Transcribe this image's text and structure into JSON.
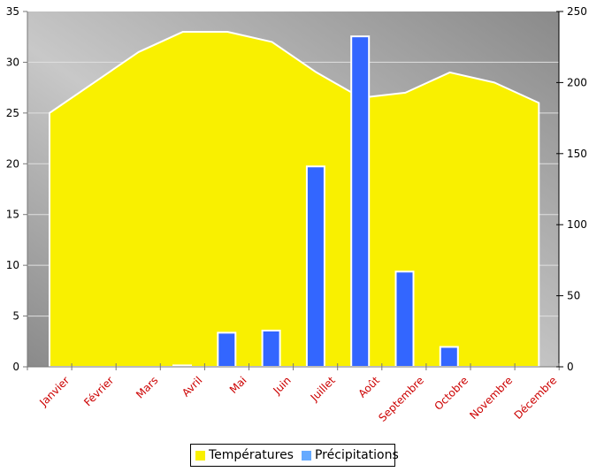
{
  "chart_data": {
    "type": "bar+area",
    "title": "",
    "categories": [
      "Janvier",
      "Février",
      "Mars",
      "Avril",
      "Mai",
      "Juin",
      "Juillet",
      "Août",
      "Septembre",
      "Octobre",
      "Novembre",
      "Décembre"
    ],
    "series": [
      {
        "name": "Températures",
        "type": "area",
        "axis": "left",
        "color": "#f9f000",
        "values": [
          25,
          28,
          31,
          33,
          33,
          32,
          29,
          26.5,
          27,
          29,
          28,
          26
        ]
      },
      {
        "name": "Précipitations",
        "type": "bar",
        "axis": "right",
        "color": "#3366ff",
        "values": [
          0,
          0,
          0,
          1,
          24,
          25.5,
          141,
          232.5,
          67,
          14,
          0,
          0
        ]
      }
    ],
    "left_axis": {
      "ylim": [
        0,
        35
      ],
      "ticks": [
        0,
        5,
        10,
        15,
        20,
        25,
        30,
        35
      ]
    },
    "right_axis": {
      "ylim": [
        0,
        250
      ],
      "ticks": [
        0,
        50,
        100,
        150,
        200,
        250
      ]
    },
    "xlabel": "",
    "ylabel": "",
    "grid": true,
    "legend_position": "bottom"
  },
  "legend": {
    "items": [
      {
        "label": "Températures",
        "color": "#f9f000"
      },
      {
        "label": "Précipitations",
        "color": "#66aaff"
      }
    ]
  }
}
